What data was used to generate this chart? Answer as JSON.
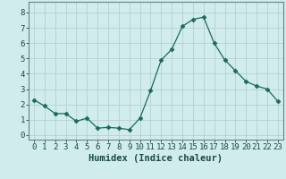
{
  "x": [
    0,
    1,
    2,
    3,
    4,
    5,
    6,
    7,
    8,
    9,
    10,
    11,
    12,
    13,
    14,
    15,
    16,
    17,
    18,
    19,
    20,
    21,
    22,
    23
  ],
  "y": [
    2.3,
    1.9,
    1.4,
    1.4,
    0.9,
    1.1,
    0.45,
    0.5,
    0.45,
    0.35,
    1.1,
    2.9,
    4.9,
    5.6,
    7.1,
    7.55,
    7.7,
    6.0,
    4.9,
    4.2,
    3.5,
    3.2,
    3.0,
    2.2
  ],
  "line_color": "#1a6b5a",
  "marker": "D",
  "marker_size": 2.5,
  "bg_color": "#d0ecec",
  "grid_color": "#b8d0d0",
  "xlabel": "Humidex (Indice chaleur)",
  "xlim": [
    -0.5,
    23.5
  ],
  "ylim": [
    -0.3,
    8.7
  ],
  "yticks": [
    0,
    1,
    2,
    3,
    4,
    5,
    6,
    7,
    8
  ],
  "xticks": [
    0,
    1,
    2,
    3,
    4,
    5,
    6,
    7,
    8,
    9,
    10,
    11,
    12,
    13,
    14,
    15,
    16,
    17,
    18,
    19,
    20,
    21,
    22,
    23
  ],
  "tick_label_fontsize": 6.5,
  "xlabel_fontsize": 7.5,
  "tick_color": "#1a4a4a",
  "spine_color": "#708080"
}
